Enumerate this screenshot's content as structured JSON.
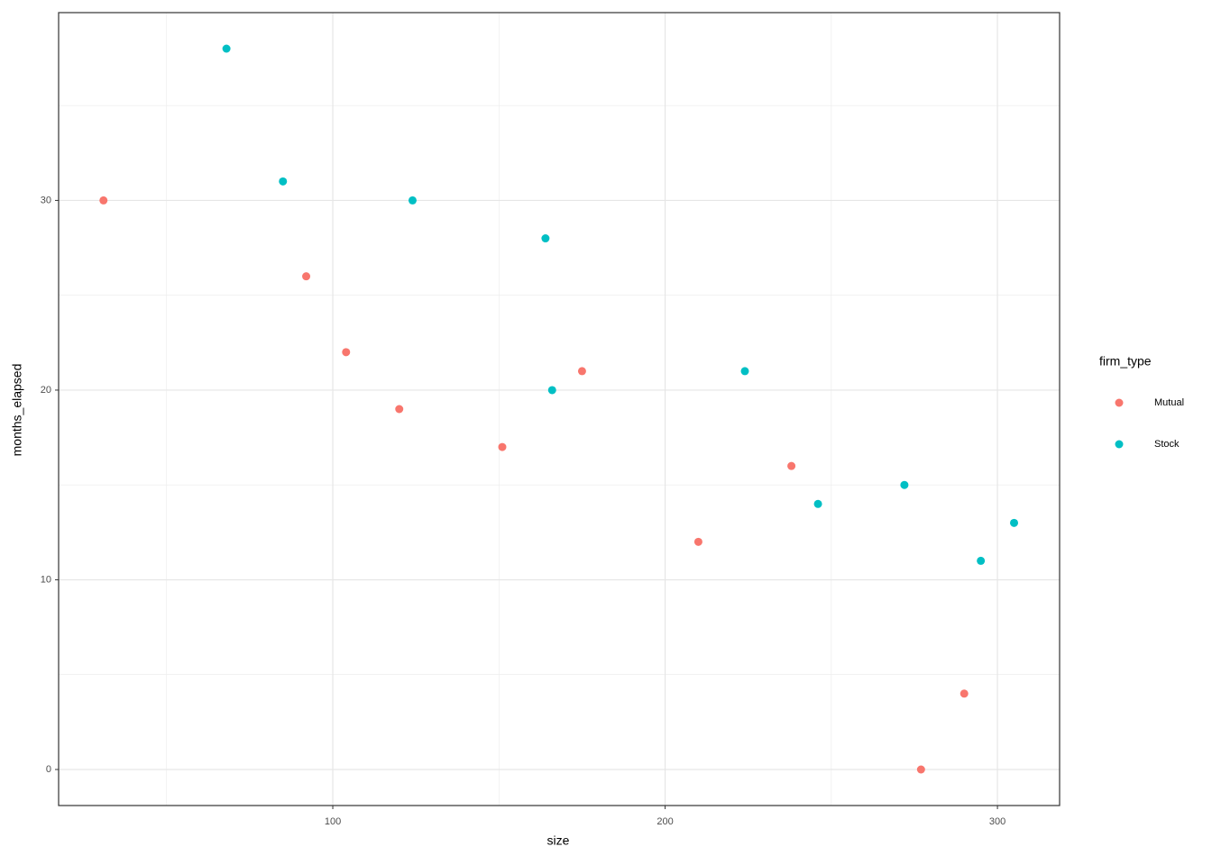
{
  "chart_data": {
    "type": "scatter",
    "x_label": "size",
    "y_label": "months_elapsed",
    "legend_title": "firm_type",
    "series": [
      {
        "name": "Mutual",
        "color": "#f8766d",
        "x": [
          31,
          92,
          104,
          120,
          151,
          175,
          210,
          238,
          277,
          290
        ],
        "values": [
          30,
          26,
          22,
          19,
          17,
          21,
          12,
          16,
          0,
          4
        ]
      },
      {
        "name": "Stock",
        "color": "#00bfc4",
        "x": [
          68,
          85,
          124,
          164,
          166,
          224,
          246,
          272,
          295,
          305
        ],
        "values": [
          38,
          31,
          30,
          28,
          20,
          21,
          14,
          15,
          11,
          13
        ]
      }
    ],
    "xlim": [
      17.5,
      318.7
    ],
    "ylim": [
      -1.9,
      39.9
    ],
    "xticks": [
      100,
      200,
      300
    ],
    "yticks": [
      0,
      10,
      20,
      30
    ],
    "x_minor_ticks": [
      50,
      150,
      250
    ],
    "y_minor_ticks": [
      5,
      15,
      25,
      35
    ],
    "grid": true,
    "legend_position": "right"
  }
}
